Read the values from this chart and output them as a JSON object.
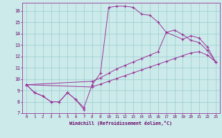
{
  "xlabel": "Windchill (Refroidissement éolien,°C)",
  "xlim": [
    -0.5,
    23.5
  ],
  "ylim": [
    7,
    16.7
  ],
  "yticks": [
    7,
    8,
    9,
    10,
    11,
    12,
    13,
    14,
    15,
    16
  ],
  "xticks": [
    0,
    1,
    2,
    3,
    4,
    5,
    6,
    7,
    8,
    9,
    10,
    11,
    12,
    13,
    14,
    15,
    16,
    17,
    18,
    19,
    20,
    21,
    22,
    23
  ],
  "bg_color": "#cceaea",
  "grid_color": "#99cccc",
  "line_color": "#993399",
  "line1_x": [
    0,
    1,
    2,
    3,
    4,
    5,
    6,
    7
  ],
  "line1_y": [
    9.5,
    8.8,
    8.5,
    8.0,
    8.0,
    8.8,
    8.2,
    7.3
  ],
  "line2_x": [
    0,
    1,
    2,
    3,
    4,
    5,
    6,
    7,
    8,
    9,
    10,
    11,
    12,
    13,
    14,
    15,
    16,
    17,
    18,
    19,
    20,
    21,
    22,
    23
  ],
  "line2_y": [
    9.5,
    8.8,
    8.5,
    8.0,
    8.0,
    8.8,
    8.2,
    7.5,
    9.5,
    10.5,
    16.3,
    16.4,
    16.4,
    16.3,
    15.7,
    15.6,
    15.0,
    14.1,
    14.3,
    13.9,
    13.4,
    13.2,
    12.5,
    11.5
  ],
  "line3_x": [
    0,
    8,
    9,
    10,
    11,
    12,
    13,
    14,
    15,
    16,
    17,
    19,
    20,
    21,
    22,
    23
  ],
  "line3_y": [
    9.5,
    9.8,
    10.1,
    10.5,
    10.9,
    11.2,
    11.5,
    11.8,
    12.1,
    12.4,
    14.1,
    13.5,
    13.8,
    13.6,
    12.8,
    11.5
  ],
  "line4_x": [
    0,
    8,
    9,
    10,
    11,
    12,
    13,
    14,
    15,
    16,
    17,
    18,
    19,
    20,
    21,
    22,
    23
  ],
  "line4_y": [
    9.5,
    9.3,
    9.55,
    9.8,
    10.05,
    10.3,
    10.55,
    10.8,
    11.05,
    11.3,
    11.55,
    11.8,
    12.05,
    12.3,
    12.4,
    12.1,
    11.5
  ]
}
